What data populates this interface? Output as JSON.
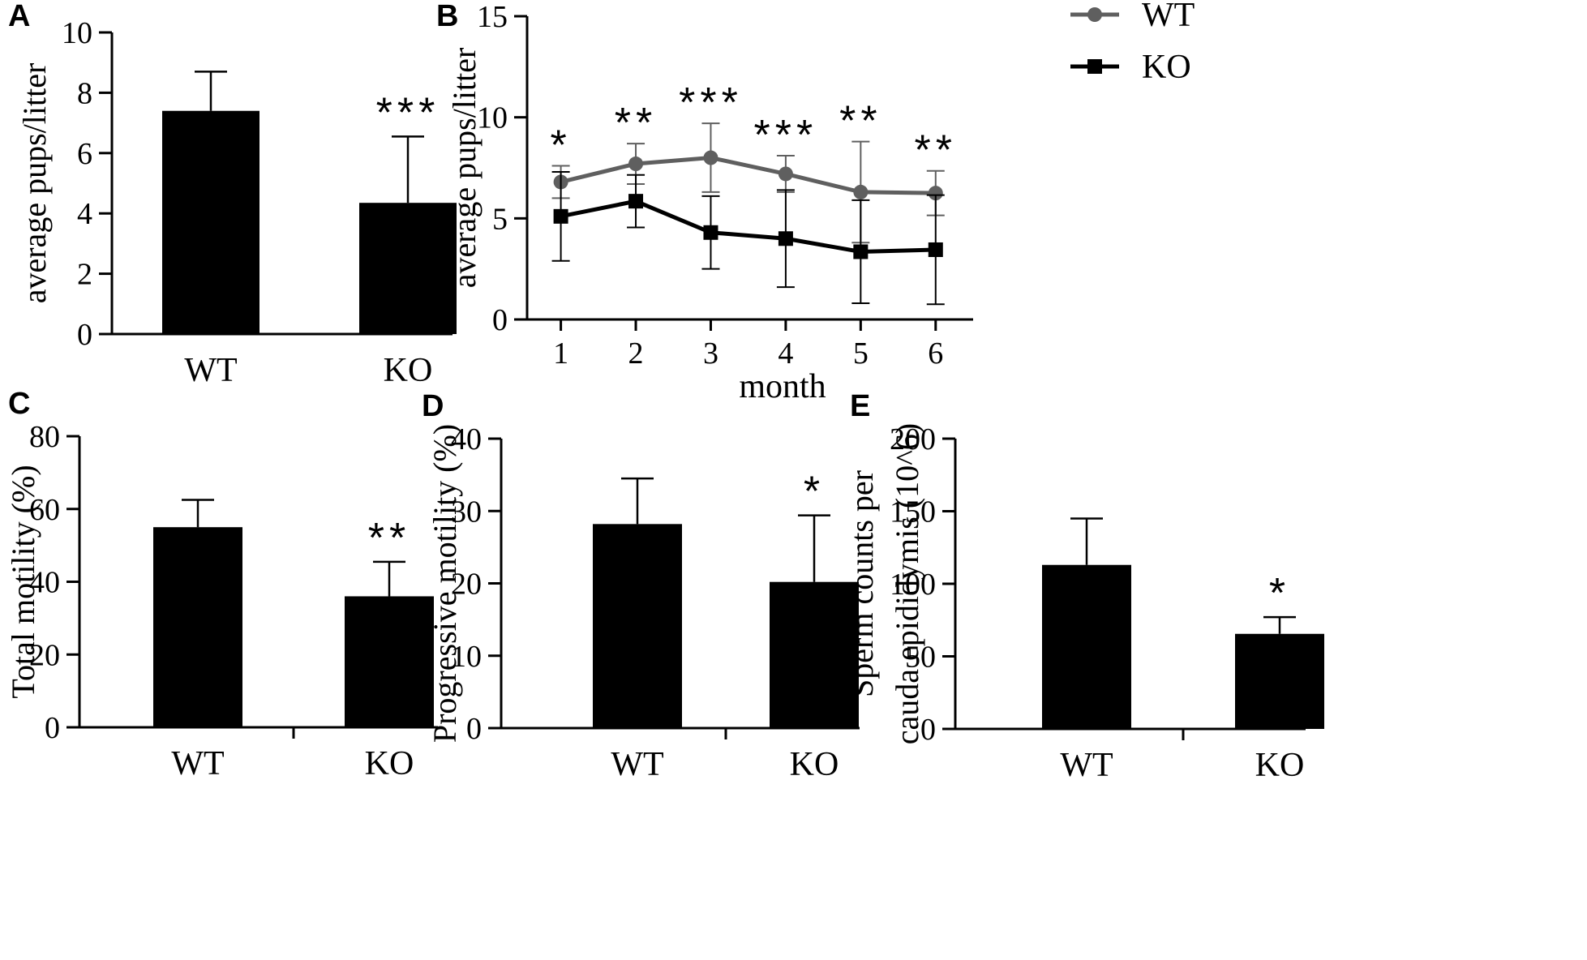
{
  "colors": {
    "wt_line": "#5f5f5f",
    "ko_line": "#000000",
    "bar": "#000000",
    "axis": "#000000"
  },
  "chart_data": [
    {
      "panel": "A",
      "type": "bar",
      "categories": [
        "WT",
        "KO"
      ],
      "values": [
        7.4,
        4.35
      ],
      "errors": [
        1.3,
        2.2
      ],
      "significance": [
        "",
        "***"
      ],
      "ylabel": "average pups/litter",
      "xlabel": "",
      "ylim": [
        0,
        10
      ],
      "yticks": [
        0,
        2,
        4,
        6,
        8,
        10
      ],
      "grid": false
    },
    {
      "panel": "B",
      "type": "line",
      "x": [
        1,
        2,
        3,
        4,
        5,
        6
      ],
      "series": [
        {
          "name": "WT",
          "values": [
            6.8,
            7.7,
            8.0,
            7.2,
            6.3,
            6.25
          ],
          "errors": [
            0.8,
            1.0,
            1.7,
            0.9,
            2.5,
            1.1
          ],
          "color": "#5f5f5f",
          "marker": "circle"
        },
        {
          "name": "KO",
          "values": [
            5.1,
            5.85,
            4.3,
            4.0,
            3.35,
            3.45
          ],
          "errors": [
            2.2,
            1.3,
            1.8,
            2.4,
            2.55,
            2.7
          ],
          "color": "#000000",
          "marker": "square"
        }
      ],
      "significance": [
        "*",
        "**",
        "***",
        "***",
        "**",
        "**"
      ],
      "xlabel": "month",
      "ylabel": "average pups/litter",
      "ylim": [
        0,
        15
      ],
      "yticks": [
        0,
        5,
        10,
        15
      ],
      "xticks": [
        1,
        2,
        3,
        4,
        5,
        6
      ],
      "legend": "top-right",
      "grid": false
    },
    {
      "panel": "C",
      "type": "bar",
      "categories": [
        "WT",
        "KO"
      ],
      "values": [
        55,
        36
      ],
      "errors": [
        7.5,
        9.5
      ],
      "significance": [
        "",
        "**"
      ],
      "ylabel": "Total motility (%)",
      "xlabel": "",
      "ylim": [
        0,
        80
      ],
      "yticks": [
        0,
        20,
        40,
        60,
        80
      ],
      "grid": false
    },
    {
      "panel": "D",
      "type": "bar",
      "categories": [
        "WT",
        "KO"
      ],
      "values": [
        28.2,
        20.2
      ],
      "errors": [
        6.3,
        9.2
      ],
      "significance": [
        "",
        "*"
      ],
      "ylabel": "Progressive motility (%)",
      "xlabel": "",
      "ylim": [
        0,
        40
      ],
      "yticks": [
        0,
        10,
        20,
        30,
        40
      ],
      "grid": false
    },
    {
      "panel": "E",
      "type": "bar",
      "categories": [
        "WT",
        "KO"
      ],
      "values": [
        113,
        65.5
      ],
      "errors": [
        32,
        11.5
      ],
      "significance": [
        "",
        "*"
      ],
      "ylabel": [
        "Sperm counts per",
        "cauda epididymis (10^6)"
      ],
      "xlabel": "",
      "ylim": [
        0,
        200
      ],
      "yticks": [
        0,
        50,
        100,
        150,
        200
      ],
      "grid": false
    }
  ]
}
